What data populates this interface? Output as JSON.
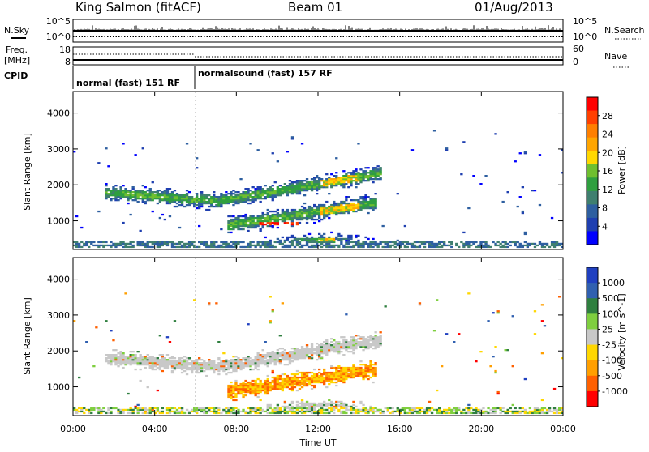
{
  "header": {
    "title": "King Salmon (fitACF)",
    "beam": "Beam 01",
    "date": "01/Aug/2013"
  },
  "strip1": {
    "left_label": "N.Sky",
    "right_label": "N.Search",
    "left_ticks": [
      "10^5",
      "10^0"
    ],
    "right_ticks": [
      "10^5",
      "10^0"
    ]
  },
  "strip2": {
    "left_label_1": "Freq.",
    "left_label_2": "[MHz]",
    "right_label": "Nave",
    "left_ticks": [
      "18",
      "8"
    ],
    "right_ticks": [
      "60",
      "0"
    ]
  },
  "cpid": {
    "label": "CPID",
    "segments": [
      {
        "text": "normal (fast) 151 RF",
        "start_hour": 0,
        "end_hour": 6
      },
      {
        "text": "normalsound (fast) 157 RF",
        "start_hour": 6,
        "end_hour": 24
      }
    ]
  },
  "colors": {
    "power_scale": [
      "#0000ff",
      "#1f3fb0",
      "#2e5fa0",
      "#3f7f6f",
      "#2f9f3f",
      "#6fbf2f",
      "#ffd700",
      "#ffa500",
      "#ff7f00",
      "#ff4000",
      "#ff0000"
    ],
    "velocity_scale": [
      "#2040c0",
      "#3060b0",
      "#2f7f3f",
      "#7fcf3f",
      "#c8c8c8",
      "#ffd700",
      "#ff9f00",
      "#ff6000",
      "#ff0000"
    ]
  },
  "chart_data": [
    {
      "type": "heatmap",
      "name": "power",
      "ylabel": "Slant Range [km]",
      "xlim": [
        0,
        24
      ],
      "ylim": [
        200,
        4600
      ],
      "y_ticks": [
        "1000",
        "2000",
        "3000",
        "4000"
      ],
      "colorbar_label": "Power [dB]",
      "colorbar_ticks": [
        "4",
        "8",
        "12",
        "16",
        "20",
        "24",
        "28"
      ]
    },
    {
      "type": "heatmap",
      "name": "velocity",
      "ylabel": "Slant Range [km]",
      "xlabel": "Time UT",
      "xlim": [
        0,
        24
      ],
      "ylim": [
        200,
        4600
      ],
      "x_ticks": [
        "00:00",
        "04:00",
        "08:00",
        "12:00",
        "16:00",
        "20:00",
        "00:00"
      ],
      "y_ticks": [
        "1000",
        "2000",
        "3000",
        "4000"
      ],
      "colorbar_label": "Velocity [m s^-1]",
      "colorbar_ticks": [
        "1000",
        "500",
        "100",
        "25",
        "-25",
        "-100",
        "-500",
        "-1000"
      ]
    }
  ]
}
